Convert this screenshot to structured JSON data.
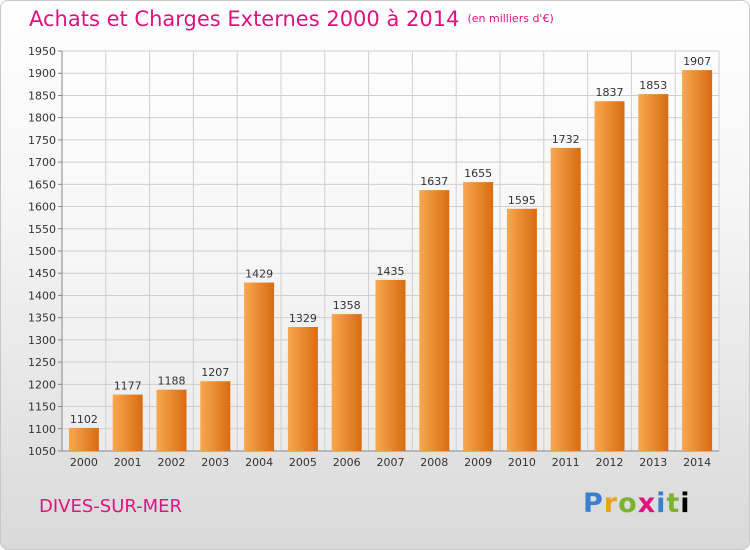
{
  "header": {
    "title": "Achats et Charges Externes 2000 à 2014",
    "subtitle": "(en milliers d'€)"
  },
  "footer": {
    "city": "DIVES-SUR-MER",
    "logo_letters": [
      "P",
      "r",
      "o",
      "x",
      "i",
      "t",
      "i"
    ]
  },
  "colors": {
    "bar_light": "#f8a84f",
    "bar_dark": "#d86c12",
    "title": "#e0127f",
    "grid": "#cfcfcf"
  },
  "chart_data": {
    "type": "bar",
    "categories": [
      "2000",
      "2001",
      "2002",
      "2003",
      "2004",
      "2005",
      "2006",
      "2007",
      "2008",
      "2009",
      "2010",
      "2011",
      "2012",
      "2013",
      "2014"
    ],
    "values": [
      1102,
      1177,
      1188,
      1207,
      1429,
      1329,
      1358,
      1435,
      1637,
      1655,
      1595,
      1732,
      1837,
      1853,
      1907
    ],
    "ylim": [
      1050,
      1950
    ],
    "yticks": [
      1050,
      1100,
      1150,
      1200,
      1250,
      1300,
      1350,
      1400,
      1450,
      1500,
      1550,
      1600,
      1650,
      1700,
      1750,
      1800,
      1850,
      1900,
      1950
    ],
    "grid": true
  }
}
